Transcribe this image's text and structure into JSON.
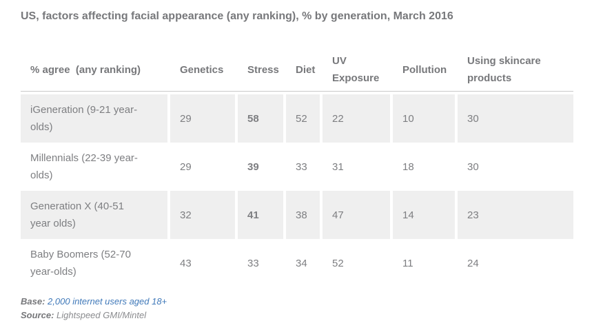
{
  "title": "US, factors affecting facial appearance (any ranking), % by generation, March 2016",
  "table": {
    "header": {
      "agree": "% agree  (any ranking)",
      "genetics": "Genetics",
      "stress": "Stress",
      "diet": "Diet",
      "uv": "UV\nExposure",
      "pollution": "Pollution",
      "skincare": "Using skincare\nproducts"
    },
    "rows": [
      {
        "label": "iGeneration (9-21 year-\nolds)",
        "values": [
          "29",
          "58",
          "52",
          "22",
          "10",
          "30"
        ],
        "stress_bold": true
      },
      {
        "label": "Millennials (22-39 year-\nolds)",
        "values": [
          "29",
          "39",
          "33",
          "31",
          "18",
          "30"
        ],
        "stress_bold": true
      },
      {
        "label": "Generation X (40-51\nyear olds)",
        "values": [
          "32",
          "41",
          "38",
          "47",
          "14",
          "23"
        ],
        "stress_bold": true
      },
      {
        "label": "Baby Boomers (52-70\nyear-olds)",
        "values": [
          "43",
          "33",
          "34",
          "52",
          "11",
          "24"
        ],
        "stress_bold": false
      }
    ]
  },
  "footer": {
    "base_label": "Base:",
    "base_value": "2,000 internet users aged 18+",
    "source_label": "Source:",
    "source_value": "Lightspeed GMI/Mintel"
  },
  "colors": {
    "title_text": "#77787b",
    "body_text": "#7d7e81",
    "zebra_row_bg": "#efefef",
    "header_border": "#c9c9c9",
    "link_blue": "#4079b9"
  },
  "chart_data": {
    "type": "table",
    "title": "US, factors affecting facial appearance (any ranking), % by generation, March 2016",
    "columns": [
      "% agree (any ranking)",
      "Genetics",
      "Stress",
      "Diet",
      "UV Exposure",
      "Pollution",
      "Using skincare products"
    ],
    "rows": [
      {
        "generation": "iGeneration (9-21 year-olds)",
        "Genetics": 29,
        "Stress": 58,
        "Diet": 52,
        "UV Exposure": 22,
        "Pollution": 10,
        "Using skincare products": 30
      },
      {
        "generation": "Millennials (22-39 year-olds)",
        "Genetics": 29,
        "Stress": 39,
        "Diet": 33,
        "UV Exposure": 31,
        "Pollution": 18,
        "Using skincare products": 30
      },
      {
        "generation": "Generation X (40-51 year olds)",
        "Genetics": 32,
        "Stress": 41,
        "Diet": 38,
        "UV Exposure": 47,
        "Pollution": 14,
        "Using skincare products": 23
      },
      {
        "generation": "Baby Boomers (52-70 year-olds)",
        "Genetics": 43,
        "Stress": 33,
        "Diet": 34,
        "UV Exposure": 52,
        "Pollution": 11,
        "Using skincare products": 24
      }
    ],
    "emphasized_cells": [
      {
        "generation": "iGeneration (9-21 year-olds)",
        "column": "Stress",
        "value": 58
      },
      {
        "generation": "Millennials (22-39 year-olds)",
        "column": "Stress",
        "value": 39
      },
      {
        "generation": "Generation X (40-51 year olds)",
        "column": "Stress",
        "value": 41
      }
    ],
    "base": "2,000 internet users aged 18+",
    "source": "Lightspeed GMI/Mintel",
    "legend_position": "none",
    "grid": false
  }
}
